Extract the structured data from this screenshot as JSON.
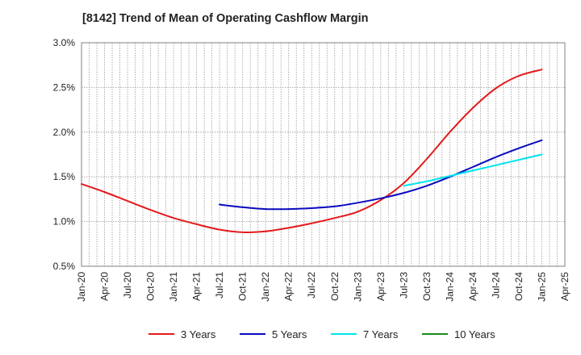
{
  "chart_data": {
    "type": "line",
    "title": "[8142]  Trend of Mean of Operating Cashflow Margin",
    "ylim": [
      0.5,
      3.0
    ],
    "y_ticks": [
      "0.5%",
      "1.0%",
      "1.5%",
      "2.0%",
      "2.5%",
      "3.0%"
    ],
    "y_tick_values": [
      0.5,
      1.0,
      1.5,
      2.0,
      2.5,
      3.0
    ],
    "x_ticks": [
      "Jan-20",
      "Apr-20",
      "Jul-20",
      "Oct-20",
      "Jan-21",
      "Apr-21",
      "Jul-21",
      "Oct-21",
      "Jan-22",
      "Apr-22",
      "Jul-22",
      "Oct-22",
      "Jan-23",
      "Apr-23",
      "Jul-23",
      "Oct-23",
      "Jan-24",
      "Apr-24",
      "Jul-24",
      "Oct-24",
      "Jan-25",
      "Apr-25"
    ],
    "grid": true,
    "legend_position": "bottom",
    "series": [
      {
        "name": "3 Years",
        "color": "#e41a1c",
        "points": [
          [
            "2020-01",
            1.42
          ],
          [
            "2020-04",
            1.33
          ],
          [
            "2020-07",
            1.23
          ],
          [
            "2020-10",
            1.13
          ],
          [
            "2021-01",
            1.04
          ],
          [
            "2021-04",
            0.97
          ],
          [
            "2021-07",
            0.91
          ],
          [
            "2021-10",
            0.88
          ],
          [
            "2022-01",
            0.89
          ],
          [
            "2022-04",
            0.93
          ],
          [
            "2022-07",
            0.98
          ],
          [
            "2022-10",
            1.04
          ],
          [
            "2023-01",
            1.11
          ],
          [
            "2023-04",
            1.24
          ],
          [
            "2023-07",
            1.43
          ],
          [
            "2023-10",
            1.7
          ],
          [
            "2024-01",
            2.0
          ],
          [
            "2024-04",
            2.27
          ],
          [
            "2024-07",
            2.49
          ],
          [
            "2024-10",
            2.63
          ],
          [
            "2025-01",
            2.7
          ]
        ]
      },
      {
        "name": "5 Years",
        "color": "#0a0abf",
        "points": [
          [
            "2021-07",
            1.19
          ],
          [
            "2021-10",
            1.16
          ],
          [
            "2022-01",
            1.14
          ],
          [
            "2022-04",
            1.14
          ],
          [
            "2022-07",
            1.15
          ],
          [
            "2022-10",
            1.17
          ],
          [
            "2023-01",
            1.21
          ],
          [
            "2023-04",
            1.26
          ],
          [
            "2023-07",
            1.32
          ],
          [
            "2023-10",
            1.4
          ],
          [
            "2024-01",
            1.5
          ],
          [
            "2024-04",
            1.61
          ],
          [
            "2024-07",
            1.72
          ],
          [
            "2024-10",
            1.82
          ],
          [
            "2025-01",
            1.91
          ]
        ]
      },
      {
        "name": "7 Years",
        "color": "#00e5ee",
        "points": [
          [
            "2023-07",
            1.4
          ],
          [
            "2023-10",
            1.45
          ],
          [
            "2024-01",
            1.51
          ],
          [
            "2024-04",
            1.57
          ],
          [
            "2024-07",
            1.63
          ],
          [
            "2024-10",
            1.69
          ],
          [
            "2025-01",
            1.75
          ]
        ]
      },
      {
        "name": "10 Years",
        "color": "#1a8a1a",
        "points": []
      }
    ]
  }
}
